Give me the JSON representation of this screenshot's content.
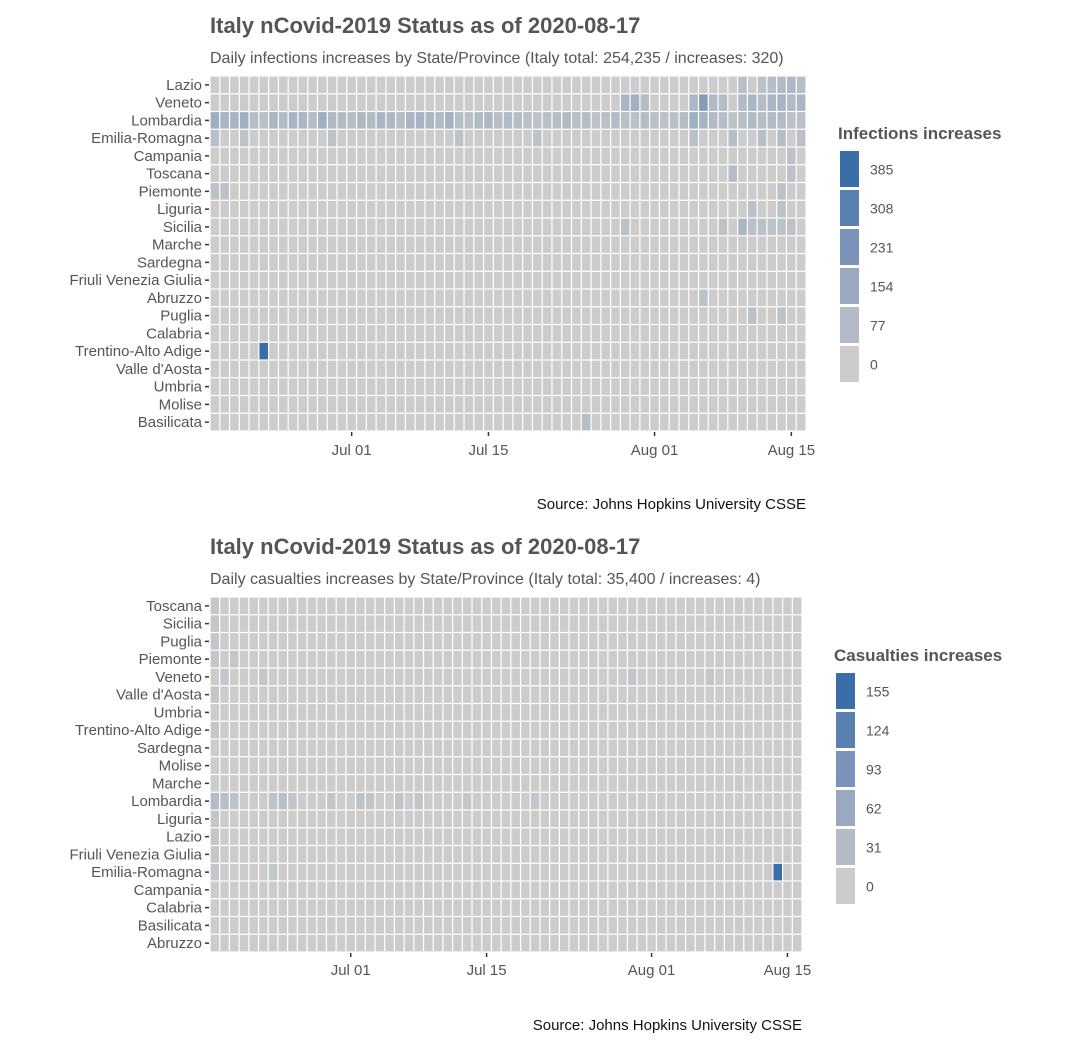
{
  "chart_data": [
    {
      "type": "heatmap",
      "title": "Italy nCovid-2019 Status as of 2020-08-17",
      "subtitle": "Daily infections increases by State/Province (Italy total: 254,235 / increases: 320)",
      "caption": "Source: Johns Hopkins University CSSE",
      "date_range": [
        "2020-06-17",
        "2020-08-16"
      ],
      "x_ticks": [
        {
          "label": "Jul 01",
          "date": "2020-07-01"
        },
        {
          "label": "Jul 15",
          "date": "2020-07-15"
        },
        {
          "label": "Aug 01",
          "date": "2020-08-01"
        },
        {
          "label": "Aug 15",
          "date": "2020-08-15"
        }
      ],
      "rows": [
        "Lazio",
        "Veneto",
        "Lombardia",
        "Emilia-Romagna",
        "Campania",
        "Toscana",
        "Piemonte",
        "Liguria",
        "Sicilia",
        "Marche",
        "Sardegna",
        "Friuli Venezia Giulia",
        "Abruzzo",
        "Puglia",
        "Calabria",
        "Trentino-Alto Adige",
        "Valle d'Aosta",
        "Umbria",
        "Molise",
        "Basilicata"
      ],
      "legend": {
        "title": "Infections increases",
        "breaks": [
          385,
          308,
          231,
          154,
          77,
          0
        ],
        "colors": [
          "#3a6ea8",
          "#5a80b0",
          "#7b93b9",
          "#9aa8c0",
          "#b4bbc7",
          "#cccccc"
        ],
        "max": 385
      },
      "highlights": [
        {
          "row": "Lombardia",
          "date": "2020-06-17",
          "value": 120
        },
        {
          "row": "Lombardia",
          "date": "2020-06-18",
          "value": 95
        },
        {
          "row": "Lombardia",
          "date": "2020-06-19",
          "value": 100
        },
        {
          "row": "Lombardia",
          "date": "2020-06-20",
          "value": 110
        },
        {
          "row": "Lombardia",
          "date": "2020-06-21",
          "value": 60
        },
        {
          "row": "Lombardia",
          "date": "2020-06-22",
          "value": 50
        },
        {
          "row": "Lombardia",
          "date": "2020-06-23",
          "value": 90
        },
        {
          "row": "Lombardia",
          "date": "2020-06-24",
          "value": 70
        },
        {
          "row": "Lombardia",
          "date": "2020-06-25",
          "value": 100
        },
        {
          "row": "Lombardia",
          "date": "2020-06-26",
          "value": 90
        },
        {
          "row": "Lombardia",
          "date": "2020-06-27",
          "value": 60
        },
        {
          "row": "Lombardia",
          "date": "2020-06-28",
          "value": 120
        },
        {
          "row": "Lombardia",
          "date": "2020-06-29",
          "value": 75
        },
        {
          "row": "Lombardia",
          "date": "2020-06-30",
          "value": 70
        },
        {
          "row": "Lombardia",
          "date": "2020-07-01",
          "value": 60
        },
        {
          "row": "Lombardia",
          "date": "2020-07-02",
          "value": 80
        },
        {
          "row": "Lombardia",
          "date": "2020-07-03",
          "value": 70
        },
        {
          "row": "Lombardia",
          "date": "2020-07-04",
          "value": 95
        },
        {
          "row": "Lombardia",
          "date": "2020-07-05",
          "value": 80
        },
        {
          "row": "Lombardia",
          "date": "2020-07-06",
          "value": 60
        },
        {
          "row": "Lombardia",
          "date": "2020-07-07",
          "value": 90
        },
        {
          "row": "Lombardia",
          "date": "2020-07-08",
          "value": 100
        },
        {
          "row": "Lombardia",
          "date": "2020-07-09",
          "value": 90
        },
        {
          "row": "Lombardia",
          "date": "2020-07-10",
          "value": 70
        },
        {
          "row": "Lombardia",
          "date": "2020-07-11",
          "value": 105
        },
        {
          "row": "Lombardia",
          "date": "2020-07-12",
          "value": 60
        },
        {
          "row": "Lombardia",
          "date": "2020-07-13",
          "value": 50
        },
        {
          "row": "Lombardia",
          "date": "2020-07-14",
          "value": 70
        },
        {
          "row": "Lombardia",
          "date": "2020-07-15",
          "value": 80
        },
        {
          "row": "Lombardia",
          "date": "2020-07-16",
          "value": 60
        },
        {
          "row": "Lombardia",
          "date": "2020-07-17",
          "value": 70
        },
        {
          "row": "Lombardia",
          "date": "2020-07-18",
          "value": 60
        },
        {
          "row": "Lombardia",
          "date": "2020-07-19",
          "value": 50
        },
        {
          "row": "Lombardia",
          "date": "2020-07-20",
          "value": 40
        },
        {
          "row": "Lombardia",
          "date": "2020-07-21",
          "value": 55
        },
        {
          "row": "Lombardia",
          "date": "2020-07-22",
          "value": 60
        },
        {
          "row": "Lombardia",
          "date": "2020-07-23",
          "value": 70
        },
        {
          "row": "Lombardia",
          "date": "2020-07-24",
          "value": 50
        },
        {
          "row": "Lombardia",
          "date": "2020-07-25",
          "value": 60
        },
        {
          "row": "Lombardia",
          "date": "2020-07-26",
          "value": 40
        },
        {
          "row": "Lombardia",
          "date": "2020-07-27",
          "value": 50
        },
        {
          "row": "Lombardia",
          "date": "2020-07-28",
          "value": 60
        },
        {
          "row": "Lombardia",
          "date": "2020-07-29",
          "value": 55
        },
        {
          "row": "Lombardia",
          "date": "2020-07-30",
          "value": 50
        },
        {
          "row": "Lombardia",
          "date": "2020-07-31",
          "value": 60
        },
        {
          "row": "Lombardia",
          "date": "2020-08-01",
          "value": 50
        },
        {
          "row": "Lombardia",
          "date": "2020-08-02",
          "value": 40
        },
        {
          "row": "Lombardia",
          "date": "2020-08-03",
          "value": 50
        },
        {
          "row": "Lombardia",
          "date": "2020-08-04",
          "value": 60
        },
        {
          "row": "Lombardia",
          "date": "2020-08-05",
          "value": 120
        },
        {
          "row": "Lombardia",
          "date": "2020-08-06",
          "value": 100
        },
        {
          "row": "Lombardia",
          "date": "2020-08-07",
          "value": 70
        },
        {
          "row": "Lombardia",
          "date": "2020-08-08",
          "value": 60
        },
        {
          "row": "Lombardia",
          "date": "2020-08-09",
          "value": 40
        },
        {
          "row": "Lombardia",
          "date": "2020-08-10",
          "value": 55
        },
        {
          "row": "Lombardia",
          "date": "2020-08-11",
          "value": 70
        },
        {
          "row": "Lombardia",
          "date": "2020-08-12",
          "value": 60
        },
        {
          "row": "Lombardia",
          "date": "2020-08-13",
          "value": 70
        },
        {
          "row": "Lombardia",
          "date": "2020-08-14",
          "value": 65
        },
        {
          "row": "Lombardia",
          "date": "2020-08-15",
          "value": 40
        },
        {
          "row": "Lombardia",
          "date": "2020-08-16",
          "value": 50
        },
        {
          "row": "Veneto",
          "date": "2020-07-29",
          "value": 90
        },
        {
          "row": "Veneto",
          "date": "2020-07-30",
          "value": 110
        },
        {
          "row": "Veneto",
          "date": "2020-07-31",
          "value": 60
        },
        {
          "row": "Veneto",
          "date": "2020-08-05",
          "value": 80
        },
        {
          "row": "Veneto",
          "date": "2020-08-06",
          "value": 190
        },
        {
          "row": "Veneto",
          "date": "2020-08-07",
          "value": 70
        },
        {
          "row": "Veneto",
          "date": "2020-08-08",
          "value": 60
        },
        {
          "row": "Veneto",
          "date": "2020-08-10",
          "value": 70
        },
        {
          "row": "Veneto",
          "date": "2020-08-11",
          "value": 90
        },
        {
          "row": "Veneto",
          "date": "2020-08-12",
          "value": 60
        },
        {
          "row": "Veneto",
          "date": "2020-08-13",
          "value": 90
        },
        {
          "row": "Veneto",
          "date": "2020-08-14",
          "value": 100
        },
        {
          "row": "Veneto",
          "date": "2020-08-15",
          "value": 70
        },
        {
          "row": "Veneto",
          "date": "2020-08-16",
          "value": 90
        },
        {
          "row": "Lazio",
          "date": "2020-08-10",
          "value": 50
        },
        {
          "row": "Lazio",
          "date": "2020-08-12",
          "value": 40
        },
        {
          "row": "Lazio",
          "date": "2020-08-13",
          "value": 60
        },
        {
          "row": "Lazio",
          "date": "2020-08-14",
          "value": 70
        },
        {
          "row": "Lazio",
          "date": "2020-08-15",
          "value": 80
        },
        {
          "row": "Lazio",
          "date": "2020-08-16",
          "value": 60
        },
        {
          "row": "Emilia-Romagna",
          "date": "2020-06-17",
          "value": 50
        },
        {
          "row": "Emilia-Romagna",
          "date": "2020-06-20",
          "value": 40
        },
        {
          "row": "Emilia-Romagna",
          "date": "2020-06-29",
          "value": 40
        },
        {
          "row": "Emilia-Romagna",
          "date": "2020-07-12",
          "value": 40
        },
        {
          "row": "Emilia-Romagna",
          "date": "2020-07-20",
          "value": 40
        },
        {
          "row": "Emilia-Romagna",
          "date": "2020-08-05",
          "value": 50
        },
        {
          "row": "Emilia-Romagna",
          "date": "2020-08-09",
          "value": 60
        },
        {
          "row": "Emilia-Romagna",
          "date": "2020-08-12",
          "value": 50
        },
        {
          "row": "Emilia-Romagna",
          "date": "2020-08-14",
          "value": 60
        },
        {
          "row": "Emilia-Romagna",
          "date": "2020-08-16",
          "value": 50
        },
        {
          "row": "Toscana",
          "date": "2020-08-09",
          "value": 60
        },
        {
          "row": "Toscana",
          "date": "2020-08-15",
          "value": 40
        },
        {
          "row": "Campania",
          "date": "2020-08-15",
          "value": 40
        },
        {
          "row": "Piemonte",
          "date": "2020-06-17",
          "value": 40
        },
        {
          "row": "Piemonte",
          "date": "2020-06-18",
          "value": 40
        },
        {
          "row": "Piemonte",
          "date": "2020-08-14",
          "value": 40
        },
        {
          "row": "Liguria",
          "date": "2020-08-11",
          "value": 40
        },
        {
          "row": "Liguria",
          "date": "2020-08-14",
          "value": 40
        },
        {
          "row": "Sicilia",
          "date": "2020-07-29",
          "value": 40
        },
        {
          "row": "Sicilia",
          "date": "2020-08-08",
          "value": 40
        },
        {
          "row": "Sicilia",
          "date": "2020-08-10",
          "value": 90
        },
        {
          "row": "Sicilia",
          "date": "2020-08-11",
          "value": 50
        },
        {
          "row": "Sicilia",
          "date": "2020-08-12",
          "value": 50
        },
        {
          "row": "Sicilia",
          "date": "2020-08-13",
          "value": 40
        },
        {
          "row": "Sicilia",
          "date": "2020-08-14",
          "value": 40
        },
        {
          "row": "Sicilia",
          "date": "2020-08-15",
          "value": 40
        },
        {
          "row": "Abruzzo",
          "date": "2020-08-06",
          "value": 40
        },
        {
          "row": "Puglia",
          "date": "2020-08-11",
          "value": 40
        },
        {
          "row": "Puglia",
          "date": "2020-08-14",
          "value": 40
        },
        {
          "row": "Trentino-Alto Adige",
          "date": "2020-06-22",
          "value": 385
        },
        {
          "row": "Basilicata",
          "date": "2020-07-25",
          "value": 60
        }
      ]
    },
    {
      "type": "heatmap",
      "title": "Italy nCovid-2019 Status as of 2020-08-17",
      "subtitle": "Daily casualties increases by State/Province (Italy total: 35,400 / increases: 4)",
      "caption": "Source: Johns Hopkins University CSSE",
      "date_range": [
        "2020-06-17",
        "2020-08-16"
      ],
      "x_ticks": [
        {
          "label": "Jul 01",
          "date": "2020-07-01"
        },
        {
          "label": "Jul 15",
          "date": "2020-07-15"
        },
        {
          "label": "Aug 01",
          "date": "2020-08-01"
        },
        {
          "label": "Aug 15",
          "date": "2020-08-15"
        }
      ],
      "rows": [
        "Toscana",
        "Sicilia",
        "Puglia",
        "Piemonte",
        "Veneto",
        "Valle d'Aosta",
        "Umbria",
        "Trentino-Alto Adige",
        "Sardegna",
        "Molise",
        "Marche",
        "Lombardia",
        "Liguria",
        "Lazio",
        "Friuli Venezia Giulia",
        "Emilia-Romagna",
        "Campania",
        "Calabria",
        "Basilicata",
        "Abruzzo"
      ],
      "legend": {
        "title": "Casualties increases",
        "breaks": [
          155,
          124,
          93,
          62,
          31,
          0
        ],
        "colors": [
          "#3a6ea8",
          "#5a80b0",
          "#7b93b9",
          "#9aa8c0",
          "#b4bbc7",
          "#cccccc"
        ],
        "max": 155
      },
      "highlights": [
        {
          "row": "Lombardia",
          "date": "2020-06-17",
          "value": 25
        },
        {
          "row": "Lombardia",
          "date": "2020-06-18",
          "value": 20
        },
        {
          "row": "Lombardia",
          "date": "2020-06-19",
          "value": 15
        },
        {
          "row": "Lombardia",
          "date": "2020-06-23",
          "value": 15
        },
        {
          "row": "Lombardia",
          "date": "2020-06-24",
          "value": 20
        },
        {
          "row": "Lombardia",
          "date": "2020-06-25",
          "value": 12
        },
        {
          "row": "Lombardia",
          "date": "2020-06-29",
          "value": 12
        },
        {
          "row": "Lombardia",
          "date": "2020-07-02",
          "value": 15
        },
        {
          "row": "Lombardia",
          "date": "2020-07-03",
          "value": 12
        },
        {
          "row": "Lombardia",
          "date": "2020-07-06",
          "value": 12
        },
        {
          "row": "Lombardia",
          "date": "2020-07-08",
          "value": 12
        },
        {
          "row": "Lombardia",
          "date": "2020-07-13",
          "value": 10
        },
        {
          "row": "Lombardia",
          "date": "2020-07-20",
          "value": 10
        },
        {
          "row": "Veneto",
          "date": "2020-06-18",
          "value": 10
        },
        {
          "row": "Veneto",
          "date": "2020-06-22",
          "value": 8
        },
        {
          "row": "Veneto",
          "date": "2020-07-30",
          "value": 8
        },
        {
          "row": "Veneto",
          "date": "2020-08-07",
          "value": 8
        },
        {
          "row": "Emilia-Romagna",
          "date": "2020-06-17",
          "value": 10
        },
        {
          "row": "Emilia-Romagna",
          "date": "2020-06-23",
          "value": 8
        },
        {
          "row": "Emilia-Romagna",
          "date": "2020-08-14",
          "value": 155
        },
        {
          "row": "Piemonte",
          "date": "2020-06-17",
          "value": 10
        },
        {
          "row": "Piemonte",
          "date": "2020-06-19",
          "value": 8
        },
        {
          "row": "Toscana",
          "date": "2020-06-17",
          "value": 8
        },
        {
          "row": "Liguria",
          "date": "2020-06-17",
          "value": 8
        },
        {
          "row": "Lazio",
          "date": "2020-06-17",
          "value": 8
        },
        {
          "row": "Puglia",
          "date": "2020-06-17",
          "value": 8
        },
        {
          "row": "Trentino-Alto Adige",
          "date": "2020-06-17",
          "value": 8
        },
        {
          "row": "Friuli Venezia Giulia",
          "date": "2020-06-17",
          "value": 8
        },
        {
          "row": "Sicilia",
          "date": "2020-06-17",
          "value": 8
        },
        {
          "row": "Valle d'Aosta",
          "date": "2020-06-17",
          "value": 8
        }
      ]
    }
  ]
}
